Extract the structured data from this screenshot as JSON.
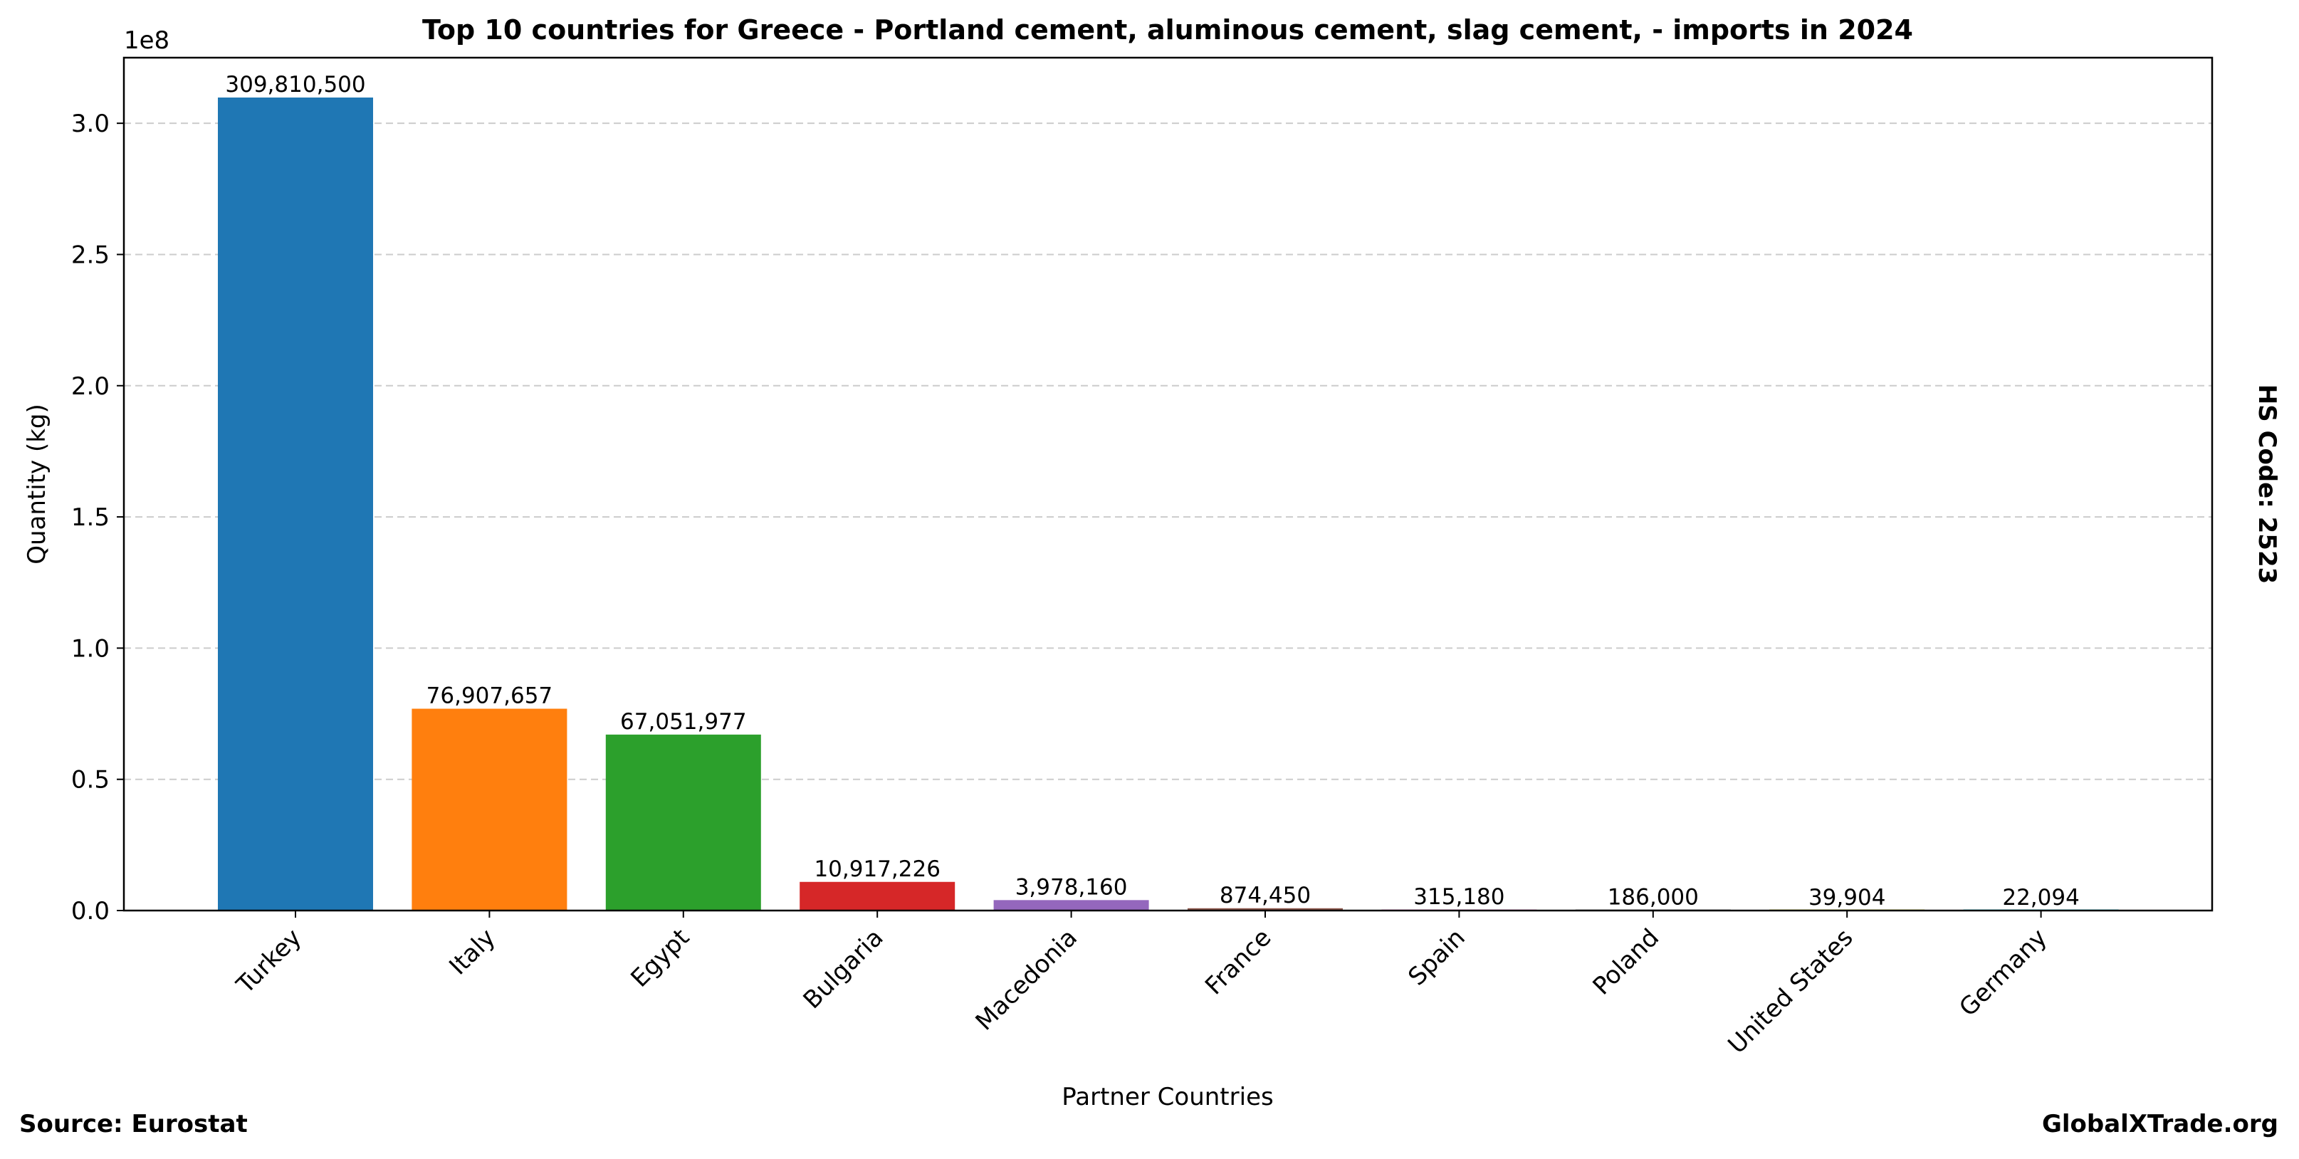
{
  "chart_data": {
    "type": "bar",
    "title": "Top 10 countries for Greece - Portland cement, aluminous cement, slag cement, - imports in 2024",
    "xlabel": "Partner Countries",
    "ylabel": "Quantity (kg)",
    "y_offset_label": "1e8",
    "ylim": [
      0,
      325000000
    ],
    "y_ticks": [
      0,
      50000000,
      100000000,
      150000000,
      200000000,
      250000000,
      300000000
    ],
    "y_tick_labels": [
      "0.0",
      "0.5",
      "1.0",
      "1.5",
      "2.0",
      "2.5",
      "3.0"
    ],
    "grid": "y-dashed",
    "categories": [
      "Turkey",
      "Italy",
      "Egypt",
      "Bulgaria",
      "Macedonia",
      "France",
      "Spain",
      "Poland",
      "United States",
      "Germany"
    ],
    "values": [
      309810500,
      76907657,
      67051977,
      10917226,
      3978160,
      874450,
      315180,
      186000,
      39904,
      22094
    ],
    "value_labels": [
      "309,810,500",
      "76,907,657",
      "67,051,977",
      "10,917,226",
      "3,978,160",
      "874,450",
      "315,180",
      "186,000",
      "39,904",
      "22,094"
    ],
    "colors": [
      "#1f77b4",
      "#ff7f0e",
      "#2ca02c",
      "#d62728",
      "#9467bd",
      "#8c564b",
      "#e377c2",
      "#7f7f7f",
      "#bcbd22",
      "#17becf"
    ]
  },
  "annotations": {
    "right_label": "HS Code: 2523",
    "source": "Source: Eurostat",
    "brand": "GlobalXTrade.org"
  }
}
